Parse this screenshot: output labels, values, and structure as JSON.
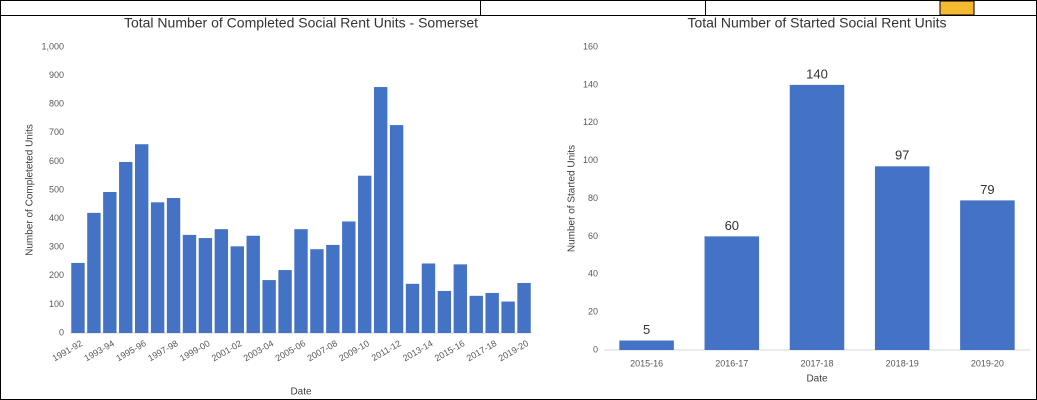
{
  "chart_data": [
    {
      "type": "bar",
      "title": "Total Number of Completed Social Rent Units - Somerset",
      "categories": [
        "1991-92",
        null,
        "1993-94",
        null,
        "1995-96",
        null,
        "1997-98",
        null,
        "1999-00",
        null,
        "2001-02",
        null,
        "2003-04",
        null,
        "2005-06",
        null,
        "2007-08",
        null,
        "2009-10",
        null,
        "2011-12",
        null,
        "2013-14",
        null,
        "2015-16",
        null,
        "2017-18",
        null,
        "2019-20"
      ],
      "values": [
        245,
        420,
        493,
        598,
        660,
        457,
        472,
        343,
        332,
        363,
        303,
        340,
        185,
        220,
        363,
        293,
        308,
        390,
        550,
        860,
        727,
        172,
        243,
        147,
        240,
        130,
        140,
        110,
        175
      ],
      "color": "#4472c4",
      "xlabel": "Date",
      "ylabel": "Number of Completeted Units",
      "ylim": [
        0,
        1000
      ],
      "yticks": [
        0,
        100,
        200,
        300,
        400,
        500,
        600,
        700,
        800,
        900,
        {
          "value": 1000,
          "label": "1,000"
        }
      ],
      "grid": false
    },
    {
      "type": "bar",
      "title": "Total Number of Started Social Rent Units",
      "categories": [
        "2015-16",
        "2016-17",
        "2017-18",
        "2018-19",
        "2019-20"
      ],
      "values": [
        5,
        60,
        140,
        97,
        79
      ],
      "color": "#4472c4",
      "xlabel": "Date",
      "ylabel": "Number of Started Units",
      "ylim": [
        0,
        160
      ],
      "yticks": [
        0,
        20,
        40,
        60,
        80,
        100,
        120,
        140,
        160
      ],
      "grid": false,
      "data_labels": true
    }
  ]
}
